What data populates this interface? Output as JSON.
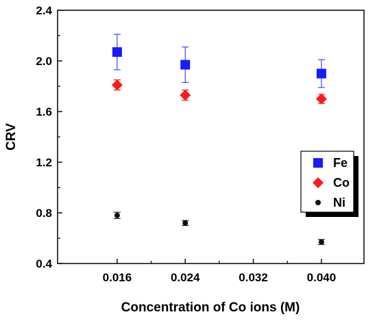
{
  "chart_data": {
    "type": "scatter",
    "xlabel": "Concentration of Co ions (M)",
    "ylabel": "CRV",
    "xlim": [
      0.009,
      0.045
    ],
    "ylim": [
      0.4,
      2.4
    ],
    "xticks": [
      0.016,
      0.024,
      0.032,
      0.04
    ],
    "xtick_labels": [
      "0.016",
      "0.024",
      "0.032",
      "0.040"
    ],
    "yticks": [
      0.4,
      0.8,
      1.2,
      1.6,
      2.0,
      2.4
    ],
    "ytick_labels": [
      "0.4",
      "0.8",
      "1.2",
      "1.6",
      "2.0",
      "2.4"
    ],
    "grid": false,
    "legend_position": "right",
    "series": [
      {
        "name": "Fe",
        "marker": "square",
        "color": "#1a1aff",
        "x": [
          0.016,
          0.024,
          0.04
        ],
        "y": [
          2.07,
          1.97,
          1.9
        ],
        "err": [
          0.14,
          0.14,
          0.11
        ]
      },
      {
        "name": "Co",
        "marker": "diamond",
        "color": "#ff1a1a",
        "x": [
          0.016,
          0.024,
          0.04
        ],
        "y": [
          1.81,
          1.73,
          1.7
        ],
        "err": [
          0.04,
          0.04,
          0.035
        ]
      },
      {
        "name": "Ni",
        "marker": "circle",
        "color": "#111111",
        "x": [
          0.016,
          0.024,
          0.04
        ],
        "y": [
          0.78,
          0.72,
          0.57
        ],
        "err": [
          0.025,
          0.02,
          0.02
        ]
      }
    ]
  }
}
